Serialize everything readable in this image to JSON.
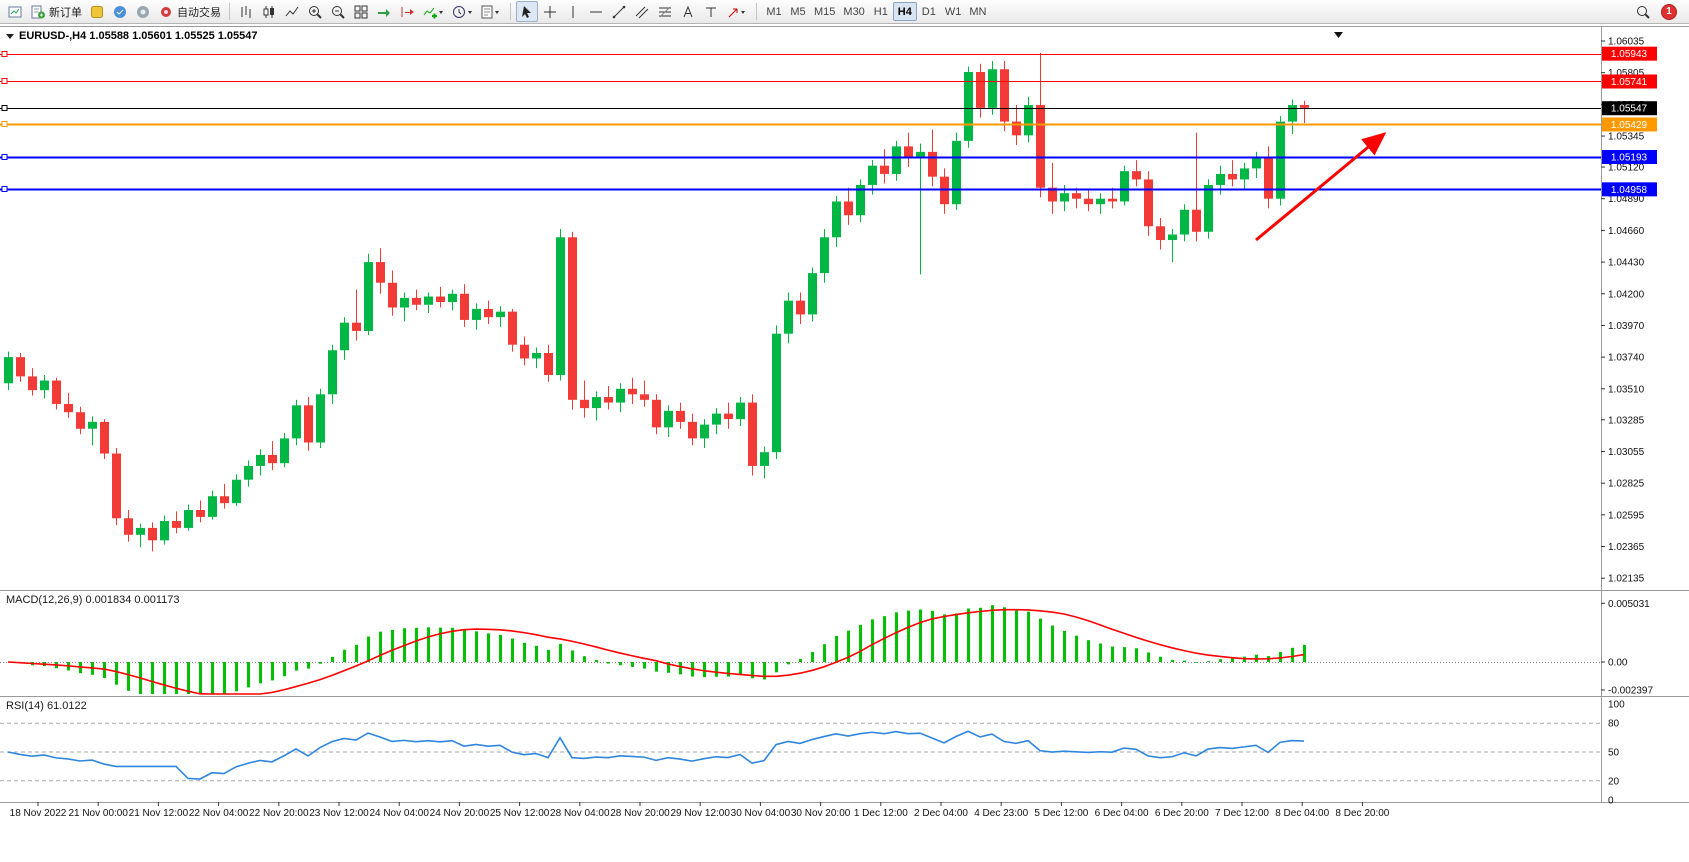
{
  "toolbar": {
    "new_order_label": "新订单",
    "autotrading_label": "自动交易",
    "timeframes": [
      "M1",
      "M5",
      "M15",
      "M30",
      "H1",
      "H4",
      "D1",
      "W1",
      "MN"
    ],
    "active_timeframe": "H4",
    "notification_count": "1"
  },
  "chart": {
    "title": "EURUSD-,H4  1.05588 1.05601 1.05525 1.05547",
    "symbol": "EURUSD-",
    "period": "H4",
    "open": "1.05588",
    "high": "1.05601",
    "low": "1.05525",
    "close": "1.05547"
  },
  "indicators": {
    "macd_label": "MACD(12,26,9) 0.001834 0.001173",
    "rsi_label": "RSI(14) 61.0122",
    "macd_axis": [
      "0.005031",
      "0.00",
      "-0.002397"
    ],
    "rsi_axis": [
      "100",
      "80",
      "50",
      "20",
      "0"
    ]
  },
  "chart_data": {
    "type": "candlestick",
    "symbol": "EURUSD",
    "timeframe": "H4",
    "ohlc_current": {
      "open": 1.05588,
      "high": 1.05601,
      "low": 1.05525,
      "close": 1.05547
    },
    "price_ticks": [
      "1.06035",
      "1.05805",
      "1.05575",
      "1.05345",
      "1.05120",
      "1.04890",
      "1.04660",
      "1.04430",
      "1.04200",
      "1.03970",
      "1.03740",
      "1.03510",
      "1.03285",
      "1.03055",
      "1.02825",
      "1.02595",
      "1.02365",
      "1.02135"
    ],
    "levels": [
      {
        "price": 1.05943,
        "color": "#FF0000",
        "width": 1,
        "label": "1.05943"
      },
      {
        "price": 1.05741,
        "color": "#FF0000",
        "width": 1,
        "label": "1.05741"
      },
      {
        "price": 1.05547,
        "color": "#000000",
        "width": 1,
        "label": "1.05547"
      },
      {
        "price": 1.05429,
        "color": "#FF9900",
        "width": 2,
        "label": "1.05429"
      },
      {
        "price": 1.05193,
        "color": "#0000FF",
        "width": 2,
        "label": "1.05193"
      },
      {
        "price": 1.04958,
        "color": "#0000FF",
        "width": 2,
        "label": "1.04958"
      }
    ],
    "time_labels": [
      "18 Nov 2022",
      "21 Nov 00:00",
      "21 Nov 12:00",
      "22 Nov 04:00",
      "22 Nov 20:00",
      "23 Nov 12:00",
      "24 Nov 04:00",
      "24 Nov 20:00",
      "25 Nov 12:00",
      "28 Nov 04:00",
      "28 Nov 20:00",
      "29 Nov 12:00",
      "30 Nov 04:00",
      "30 Nov 20:00",
      "1 Dec 12:00",
      "2 Dec 04:00",
      "4 Dec 23:00",
      "5 Dec 12:00",
      "6 Dec 04:00",
      "6 Dec 20:00",
      "7 Dec 12:00",
      "8 Dec 04:00",
      "8 Dec 20:00"
    ],
    "macd": {
      "params": "12,26,9",
      "main_value": "0.001834",
      "signal_value": "0.001173",
      "axis_max": 0.005031,
      "axis_min": -0.002397
    },
    "rsi": {
      "params": "14",
      "value": "61.0122",
      "range": [
        0,
        100
      ]
    },
    "annotations": [
      {
        "type": "arrow",
        "color": "#FF0000",
        "note": "upward red trend arrow at right side of chart"
      }
    ],
    "colors": {
      "up": "#00B746",
      "down": "#F23B36",
      "macd_hist": "#00C000",
      "macd_signal": "#FF0000",
      "rsi_line": "#2E86DE",
      "level_red": "#FF0000",
      "level_blue": "#0000FF",
      "level_orange": "#FF9900"
    },
    "candles": [
      [
        1.0355,
        1.0378,
        1.035,
        1.0374
      ],
      [
        1.0374,
        1.0377,
        1.0356,
        1.036
      ],
      [
        1.036,
        1.0366,
        1.0346,
        1.035
      ],
      [
        1.035,
        1.0361,
        1.0344,
        1.0357
      ],
      [
        1.0357,
        1.0359,
        1.0336,
        1.034
      ],
      [
        1.034,
        1.0348,
        1.033,
        1.0334
      ],
      [
        1.0334,
        1.0338,
        1.0318,
        1.0322
      ],
      [
        1.0322,
        1.0331,
        1.031,
        1.0327
      ],
      [
        1.0327,
        1.0329,
        1.03,
        1.0304
      ],
      [
        1.0304,
        1.0308,
        1.0252,
        1.0257
      ],
      [
        1.0257,
        1.0263,
        1.024,
        1.0245
      ],
      [
        1.0245,
        1.0253,
        1.0236,
        1.025
      ],
      [
        1.025,
        1.0254,
        1.0233,
        1.0241
      ],
      [
        1.0241,
        1.0259,
        1.0238,
        1.0255
      ],
      [
        1.0255,
        1.0262,
        1.0246,
        1.025
      ],
      [
        1.025,
        1.0267,
        1.0248,
        1.0263
      ],
      [
        1.0263,
        1.027,
        1.0254,
        1.0258
      ],
      [
        1.0258,
        1.0277,
        1.0256,
        1.0273
      ],
      [
        1.0273,
        1.0282,
        1.0264,
        1.0268
      ],
      [
        1.0268,
        1.0289,
        1.0266,
        1.0285
      ],
      [
        1.0285,
        1.0299,
        1.028,
        1.0295
      ],
      [
        1.0295,
        1.0307,
        1.0288,
        1.0303
      ],
      [
        1.0303,
        1.0313,
        1.0292,
        1.0297
      ],
      [
        1.0297,
        1.0319,
        1.0294,
        1.0315
      ],
      [
        1.0315,
        1.0343,
        1.031,
        1.0339
      ],
      [
        1.0339,
        1.0345,
        1.0306,
        1.0312
      ],
      [
        1.0312,
        1.0351,
        1.0308,
        1.0347
      ],
      [
        1.0347,
        1.0383,
        1.034,
        1.0379
      ],
      [
        1.0379,
        1.0403,
        1.0372,
        1.0399
      ],
      [
        1.0399,
        1.0423,
        1.0386,
        1.0393
      ],
      [
        1.0393,
        1.0449,
        1.039,
        1.0443
      ],
      [
        1.0443,
        1.0453,
        1.042,
        1.0428
      ],
      [
        1.0428,
        1.0437,
        1.0404,
        1.041
      ],
      [
        1.041,
        1.0421,
        1.04,
        1.0417
      ],
      [
        1.0417,
        1.0423,
        1.0408,
        1.0412
      ],
      [
        1.0412,
        1.0421,
        1.0406,
        1.0418
      ],
      [
        1.0418,
        1.0425,
        1.041,
        1.0414
      ],
      [
        1.0414,
        1.0423,
        1.0408,
        1.042
      ],
      [
        1.042,
        1.0427,
        1.0396,
        1.0401
      ],
      [
        1.0401,
        1.0413,
        1.0394,
        1.0409
      ],
      [
        1.0409,
        1.0415,
        1.0398,
        1.0403
      ],
      [
        1.0403,
        1.0411,
        1.0396,
        1.0407
      ],
      [
        1.0407,
        1.0409,
        1.0378,
        1.0383
      ],
      [
        1.0383,
        1.0389,
        1.0368,
        1.0373
      ],
      [
        1.0373,
        1.0381,
        1.0366,
        1.0377
      ],
      [
        1.0377,
        1.0383,
        1.0356,
        1.0361
      ],
      [
        1.0361,
        1.0467,
        1.0357,
        1.0461
      ],
      [
        1.0461,
        1.0465,
        1.0336,
        1.0343
      ],
      [
        1.0343,
        1.0357,
        1.033,
        1.0337
      ],
      [
        1.0337,
        1.0349,
        1.0328,
        1.0345
      ],
      [
        1.0345,
        1.0353,
        1.0336,
        1.0341
      ],
      [
        1.0341,
        1.0355,
        1.0334,
        1.0351
      ],
      [
        1.0351,
        1.0359,
        1.034,
        1.0347
      ],
      [
        1.0347,
        1.0357,
        1.0338,
        1.0343
      ],
      [
        1.0343,
        1.0347,
        1.0318,
        1.0323
      ],
      [
        1.0323,
        1.0339,
        1.0316,
        1.0335
      ],
      [
        1.0335,
        1.0341,
        1.0322,
        1.0327
      ],
      [
        1.0327,
        1.0333,
        1.031,
        1.0315
      ],
      [
        1.0315,
        1.0329,
        1.0308,
        1.0325
      ],
      [
        1.0325,
        1.0337,
        1.0318,
        1.0333
      ],
      [
        1.0333,
        1.0341,
        1.0322,
        1.0329
      ],
      [
        1.0329,
        1.0345,
        1.0324,
        1.0341
      ],
      [
        1.0341,
        1.0347,
        1.0288,
        1.0295
      ],
      [
        1.0295,
        1.0309,
        1.0286,
        1.0305
      ],
      [
        1.0305,
        1.0397,
        1.03,
        1.0391
      ],
      [
        1.0391,
        1.0421,
        1.0384,
        1.0415
      ],
      [
        1.0415,
        1.0421,
        1.0398,
        1.0405
      ],
      [
        1.0405,
        1.0439,
        1.04,
        1.0435
      ],
      [
        1.0435,
        1.0467,
        1.0428,
        1.0461
      ],
      [
        1.0461,
        1.0491,
        1.0454,
        1.0487
      ],
      [
        1.0487,
        1.0497,
        1.047,
        1.0477
      ],
      [
        1.0477,
        1.0503,
        1.0472,
        1.0499
      ],
      [
        1.0499,
        1.0517,
        1.0492,
        1.0513
      ],
      [
        1.0513,
        1.0525,
        1.05,
        1.0507
      ],
      [
        1.0507,
        1.0531,
        1.0502,
        1.0527
      ],
      [
        1.0527,
        1.0537,
        1.0512,
        1.0519
      ],
      [
        1.0519,
        1.0529,
        1.0434,
        1.0523
      ],
      [
        1.0523,
        1.0539,
        1.0498,
        1.0505
      ],
      [
        1.0505,
        1.0511,
        1.0478,
        1.0485
      ],
      [
        1.0485,
        1.0537,
        1.0481,
        1.0531
      ],
      [
        1.0531,
        1.0585,
        1.0526,
        1.0581
      ],
      [
        1.0581,
        1.0587,
        1.0548,
        1.0555
      ],
      [
        1.0555,
        1.0589,
        1.055,
        1.0583
      ],
      [
        1.0583,
        1.0589,
        1.0538,
        1.0545
      ],
      [
        1.0545,
        1.0557,
        1.0528,
        1.0535
      ],
      [
        1.0535,
        1.0563,
        1.053,
        1.0557
      ],
      [
        1.0557,
        1.0595,
        1.049,
        1.0497
      ],
      [
        1.0497,
        1.0515,
        1.0478,
        1.0487
      ],
      [
        1.0487,
        1.0499,
        1.048,
        1.0493
      ],
      [
        1.0493,
        1.0497,
        1.0482,
        1.0489
      ],
      [
        1.0489,
        1.0495,
        1.048,
        1.0485
      ],
      [
        1.0485,
        1.0493,
        1.0478,
        1.0489
      ],
      [
        1.0489,
        1.0497,
        1.0482,
        1.0487
      ],
      [
        1.0487,
        1.0513,
        1.0484,
        1.0509
      ],
      [
        1.0509,
        1.0517,
        1.0498,
        1.0503
      ],
      [
        1.0503,
        1.0509,
        1.0462,
        1.0469
      ],
      [
        1.0469,
        1.0475,
        1.0452,
        1.0459
      ],
      [
        1.0459,
        1.0467,
        1.0443,
        1.0463
      ],
      [
        1.0463,
        1.0485,
        1.0458,
        1.0481
      ],
      [
        1.0481,
        1.0537,
        1.0458,
        1.0465
      ],
      [
        1.0465,
        1.0503,
        1.046,
        1.0499
      ],
      [
        1.0499,
        1.0513,
        1.0492,
        1.0507
      ],
      [
        1.0507,
        1.0517,
        1.0498,
        1.0503
      ],
      [
        1.0503,
        1.0515,
        1.0496,
        1.0511
      ],
      [
        1.0511,
        1.0523,
        1.0504,
        1.0519
      ],
      [
        1.0519,
        1.0527,
        1.0482,
        1.0489
      ],
      [
        1.0489,
        1.0549,
        1.0484,
        1.0545
      ],
      [
        1.0545,
        1.0561,
        1.0536,
        1.0557
      ],
      [
        1.0557,
        1.056,
        1.0544,
        1.0555
      ]
    ]
  }
}
